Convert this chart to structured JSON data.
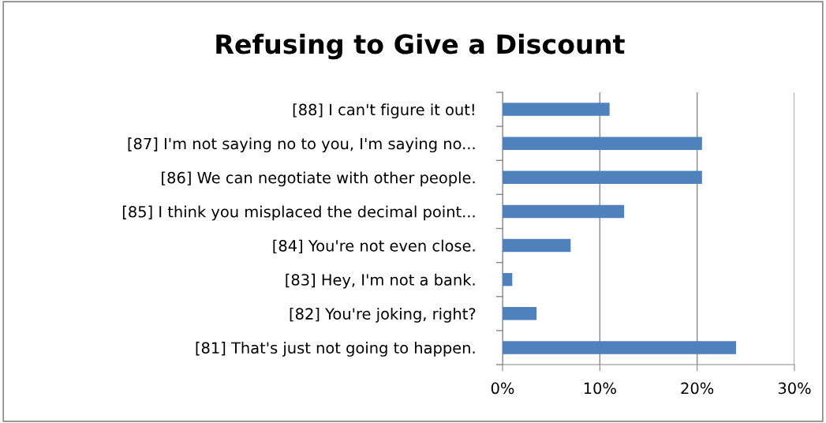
{
  "chart_data": {
    "type": "bar",
    "orientation": "horizontal",
    "title": "Refusing to Give a Discount",
    "categories": [
      "[88] I can't figure it out!",
      "[87] I'm not saying no to you, I'm saying no...",
      "[86] We can negotiate with other people.",
      "[85] I think you misplaced the decimal point...",
      "[84] You're not even close.",
      "[83] Hey, I'm not a bank.",
      "[82] You're joking, right?",
      "[81] That's just not going to happen."
    ],
    "values": [
      11,
      20.5,
      20.5,
      12.5,
      7,
      1,
      3.5,
      24
    ],
    "color": "#4f81bd",
    "xlim": [
      0,
      30
    ],
    "xticks": [
      {
        "value": 0,
        "label": "0%"
      },
      {
        "value": 10,
        "label": "10%"
      },
      {
        "value": 20,
        "label": "20%"
      },
      {
        "value": 30,
        "label": "30%"
      }
    ],
    "grid": "x",
    "legend": false
  }
}
